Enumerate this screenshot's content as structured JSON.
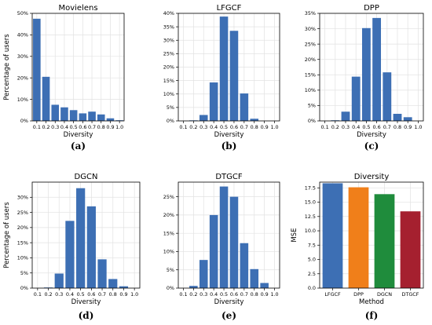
{
  "chart_data": [
    {
      "type": "bar",
      "title": "Movielens",
      "xlabel": "Diversity",
      "ylabel": "Percentage of users",
      "caption": "(a)",
      "categories": [
        "0.1",
        "0.2",
        "0.3",
        "0.4",
        "0.5",
        "0.6",
        "0.7",
        "0.8",
        "0.9",
        "1.0"
      ],
      "values": [
        47.5,
        20.5,
        7.5,
        6.3,
        5.0,
        3.5,
        4.3,
        3.0,
        1.2,
        0.3
      ],
      "ylim": [
        0,
        50
      ],
      "yticks": [
        "0%",
        "10%",
        "20%",
        "30%",
        "40%",
        "50%"
      ],
      "ytick_values": [
        0,
        10,
        20,
        30,
        40,
        50
      ],
      "color": "#3d6fb4",
      "grid": true
    },
    {
      "type": "bar",
      "title": "LFGCF",
      "xlabel": "Diversity",
      "ylabel": "",
      "caption": "(b)",
      "categories": [
        "0.1",
        "0.2",
        "0.3",
        "0.4",
        "0.5",
        "0.6",
        "0.7",
        "0.8",
        "0.9",
        "1.0"
      ],
      "values": [
        0,
        0.2,
        2.2,
        14.3,
        38.8,
        33.5,
        10.2,
        0.8,
        0,
        0
      ],
      "ylim": [
        0,
        40
      ],
      "yticks": [
        "0%",
        "5%",
        "10%",
        "15%",
        "20%",
        "25%",
        "30%",
        "35%",
        "40%"
      ],
      "ytick_values": [
        0,
        5,
        10,
        15,
        20,
        25,
        30,
        35,
        40
      ],
      "color": "#3d6fb4",
      "grid": true
    },
    {
      "type": "bar",
      "title": "DPP",
      "xlabel": "Diversity",
      "ylabel": "",
      "caption": "(c)",
      "categories": [
        "0.1",
        "0.2",
        "0.3",
        "0.4",
        "0.5",
        "0.6",
        "0.7",
        "0.8",
        "0.9",
        "1.0"
      ],
      "values": [
        0,
        0.2,
        3.0,
        14.4,
        30.2,
        33.5,
        15.8,
        2.3,
        1.2,
        0
      ],
      "ylim": [
        0,
        35
      ],
      "yticks": [
        "0%",
        "5%",
        "10%",
        "15%",
        "20%",
        "25%",
        "30%",
        "35%"
      ],
      "ytick_values": [
        0,
        5,
        10,
        15,
        20,
        25,
        30,
        35
      ],
      "color": "#3d6fb4",
      "grid": true
    },
    {
      "type": "bar",
      "title": "DGCN",
      "xlabel": "Diversity",
      "ylabel": "Percentage of users",
      "caption": "(d)",
      "categories": [
        "0.1",
        "0.2",
        "0.3",
        "0.4",
        "0.5",
        "0.6",
        "0.7",
        "0.8",
        "0.9",
        "1.0"
      ],
      "values": [
        0,
        0.2,
        4.8,
        22.2,
        33.0,
        27.0,
        9.5,
        3.0,
        0.6,
        0
      ],
      "ylim": [
        0,
        35
      ],
      "yticks": [
        "0%",
        "5%",
        "10%",
        "15%",
        "20%",
        "25%",
        "30%"
      ],
      "ytick_values": [
        0,
        5,
        10,
        15,
        20,
        25,
        30
      ],
      "color": "#3d6fb4",
      "grid": true
    },
    {
      "type": "bar",
      "title": "DTGCF",
      "xlabel": "Diversity",
      "ylabel": "",
      "caption": "(e)",
      "categories": [
        "0.1",
        "0.2",
        "0.3",
        "0.4",
        "0.5",
        "0.6",
        "0.7",
        "0.8",
        "0.9",
        "1.0"
      ],
      "values": [
        0,
        0.6,
        7.7,
        20.0,
        27.8,
        25.0,
        12.3,
        5.2,
        1.4,
        0
      ],
      "ylim": [
        0,
        29
      ],
      "yticks": [
        "0%",
        "5%",
        "10%",
        "15%",
        "20%",
        "25%"
      ],
      "ytick_values": [
        0,
        5,
        10,
        15,
        20,
        25
      ],
      "color": "#3d6fb4",
      "grid": true
    },
    {
      "type": "bar",
      "title": "Diversity",
      "xlabel": "Method",
      "ylabel": "MSE",
      "caption": "(f)",
      "categories": [
        "LFGCF",
        "DPP",
        "DGCN",
        "DTGCF"
      ],
      "values": [
        18.3,
        17.6,
        16.4,
        13.4
      ],
      "ylim": [
        0,
        18.5
      ],
      "yticks": [
        "0.0",
        "2.5",
        "5.0",
        "7.5",
        "10.0",
        "12.5",
        "15.0",
        "17.5"
      ],
      "ytick_values": [
        0,
        2.5,
        5,
        7.5,
        10,
        12.5,
        15,
        17.5
      ],
      "colors": [
        "#3d6fb4",
        "#f07f1a",
        "#1f8c3c",
        "#a5202f"
      ],
      "grid": true
    }
  ]
}
